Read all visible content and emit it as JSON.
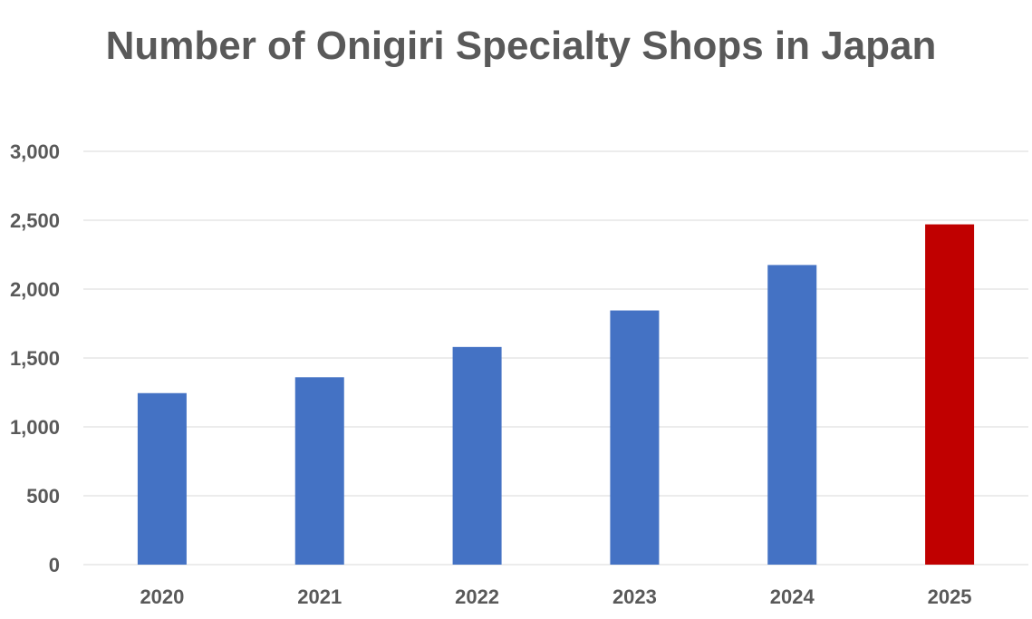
{
  "chart_data": {
    "type": "bar",
    "title": "Number of Onigiri Specialty Shops in Japan",
    "xlabel": "",
    "ylabel": "",
    "categories": [
      "2020",
      "2021",
      "2022",
      "2023",
      "2024",
      "2025"
    ],
    "values": [
      1245,
      1360,
      1580,
      1845,
      2175,
      2470
    ],
    "ylim": [
      0,
      3000
    ],
    "yticks": [
      "0",
      "500",
      "1,000",
      "1,500",
      "2,000",
      "2,500",
      "3,000"
    ],
    "grid": true,
    "legend": "none",
    "colors": {
      "bar": "#4472C4",
      "highlight": "#C00000",
      "highlight_category": "2025",
      "gridline": "#D9D9D9",
      "text": "#595959"
    }
  }
}
